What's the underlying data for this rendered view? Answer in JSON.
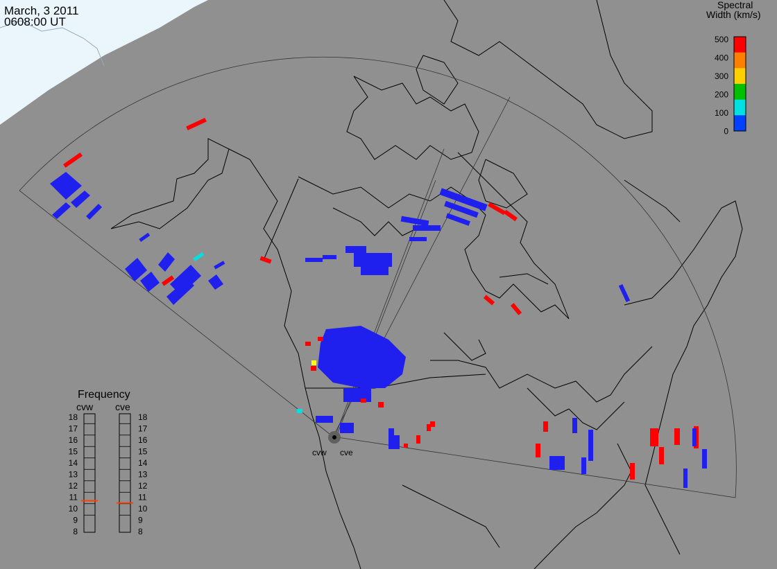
{
  "header": {
    "date": "March, 3 2011",
    "time": "0608:00 UT"
  },
  "colorbar": {
    "title_line1": "Spectral",
    "title_line2": "Width (km/s)",
    "ticks": [
      "500",
      "400",
      "300",
      "200",
      "100",
      "0"
    ],
    "colors": [
      "#ff0000",
      "#ff8000",
      "#ffd000",
      "#00c000",
      "#00e0e0",
      "#0040ff"
    ],
    "range": [
      0,
      500
    ]
  },
  "frequency": {
    "title": "Frequency",
    "left_label": "cvw",
    "right_label": "cve",
    "levels": [
      "18",
      "17",
      "16",
      "15",
      "14",
      "13",
      "12",
      "11",
      "10",
      "9",
      "8"
    ],
    "cvw_value": 10.7,
    "cve_value": 10.5,
    "marker_color": "#ff4000"
  },
  "sites": {
    "west": "cvw",
    "east": "cve"
  },
  "colors": {
    "background": "#909090",
    "arctic_ice": "#eaf6fb",
    "low_width": "#2020ee",
    "high_width": "#ff0000",
    "mid_width": "#00e0e0"
  }
}
